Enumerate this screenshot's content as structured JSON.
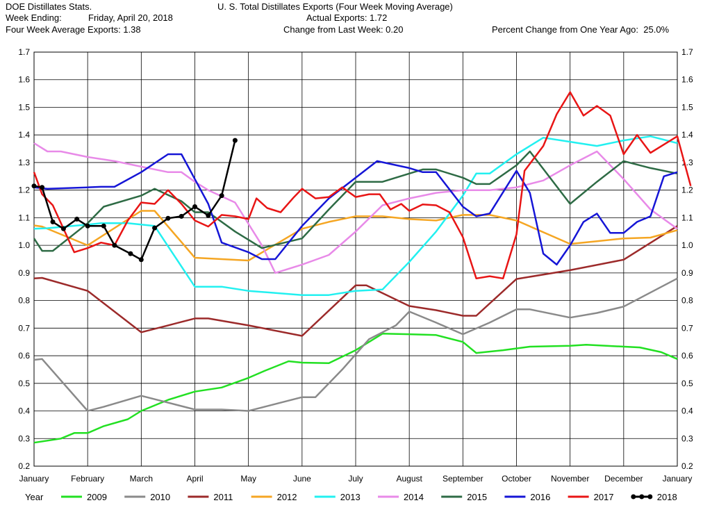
{
  "header": {
    "source": "DOE Distillates Stats.",
    "week_ending_label": "Week Ending:",
    "week_ending_value": "Friday, April 20, 2018",
    "four_week_avg": "Four Week Average Exports: 1.38",
    "title": "U. S. Total Distillates Exports (Four Week Moving Average)",
    "actual_exports": "Actual Exports: 1.72",
    "change_last_week": "Change from Last Week: 0.20",
    "pct_change": "Percent Change from One Year Ago:  25.0%"
  },
  "colors": {
    "2009": "#22e022",
    "2010": "#8a8a8a",
    "2011": "#9c2a2a",
    "2012": "#f5a623",
    "2013": "#22f0f0",
    "2014": "#e88ae8",
    "2015": "#2e6b45",
    "2016": "#1515d6",
    "2017": "#e81515",
    "2018": "#000000"
  },
  "chart_data": {
    "type": "line",
    "title": "U. S. Total Distillates Exports (Four Week Moving Average)",
    "x_unit": "month index (0 = January 1, 12 = following January 1)",
    "xlabels": [
      "January",
      "February",
      "March",
      "April",
      "May",
      "June",
      "July",
      "August",
      "September",
      "October",
      "November",
      "December",
      "January"
    ],
    "ylim": [
      0.2,
      1.7
    ],
    "yticks": [
      "0.2",
      "0.3",
      "0.4",
      "0.5",
      "0.6",
      "0.7",
      "0.8",
      "0.9",
      "1.0",
      "1.1",
      "1.2",
      "1.3",
      "1.4",
      "1.5",
      "1.6",
      "1.7"
    ],
    "grid": true,
    "legend_position": "bottom",
    "legend_title": "Year",
    "series": [
      {
        "name": "2009",
        "markers": false,
        "points": [
          [
            0,
            0.285
          ],
          [
            0.5,
            0.3
          ],
          [
            0.75,
            0.32
          ],
          [
            1.0,
            0.32
          ],
          [
            1.3,
            0.345
          ],
          [
            1.75,
            0.37
          ],
          [
            2.0,
            0.4
          ],
          [
            2.5,
            0.44
          ],
          [
            3.0,
            0.47
          ],
          [
            3.5,
            0.485
          ],
          [
            4.0,
            0.52
          ],
          [
            4.3,
            0.545
          ],
          [
            4.75,
            0.58
          ],
          [
            5.0,
            0.575
          ],
          [
            5.5,
            0.573
          ],
          [
            6.0,
            0.62
          ],
          [
            6.5,
            0.68
          ],
          [
            7.0,
            0.678
          ],
          [
            7.5,
            0.675
          ],
          [
            8.0,
            0.65
          ],
          [
            8.25,
            0.61
          ],
          [
            8.75,
            0.62
          ],
          [
            9.25,
            0.633
          ],
          [
            10.0,
            0.636
          ],
          [
            10.3,
            0.64
          ],
          [
            10.8,
            0.635
          ],
          [
            11.3,
            0.63
          ],
          [
            11.7,
            0.613
          ],
          [
            12.0,
            0.588
          ]
        ]
      },
      {
        "name": "2010",
        "markers": false,
        "points": [
          [
            0,
            0.585
          ],
          [
            0.15,
            0.588
          ],
          [
            1.0,
            0.4
          ],
          [
            1.3,
            0.415
          ],
          [
            2.0,
            0.455
          ],
          [
            2.5,
            0.43
          ],
          [
            3.0,
            0.405
          ],
          [
            3.5,
            0.405
          ],
          [
            4.0,
            0.4
          ],
          [
            5.0,
            0.45
          ],
          [
            5.25,
            0.45
          ],
          [
            5.75,
            0.55
          ],
          [
            6.25,
            0.66
          ],
          [
            6.75,
            0.71
          ],
          [
            7.0,
            0.76
          ],
          [
            7.5,
            0.72
          ],
          [
            8.0,
            0.678
          ],
          [
            8.5,
            0.72
          ],
          [
            9.0,
            0.768
          ],
          [
            9.25,
            0.768
          ],
          [
            10.0,
            0.738
          ],
          [
            10.5,
            0.755
          ],
          [
            11.0,
            0.778
          ],
          [
            12.0,
            0.88
          ]
        ]
      },
      {
        "name": "2011",
        "markers": false,
        "points": [
          [
            0,
            0.88
          ],
          [
            0.15,
            0.882
          ],
          [
            1.0,
            0.835
          ],
          [
            2.0,
            0.685
          ],
          [
            2.5,
            0.71
          ],
          [
            3.0,
            0.735
          ],
          [
            3.25,
            0.735
          ],
          [
            4.0,
            0.71
          ],
          [
            5.0,
            0.672
          ],
          [
            6.0,
            0.855
          ],
          [
            6.2,
            0.855
          ],
          [
            7.0,
            0.78
          ],
          [
            7.5,
            0.765
          ],
          [
            8.0,
            0.745
          ],
          [
            8.25,
            0.745
          ],
          [
            9.0,
            0.878
          ],
          [
            10.0,
            0.91
          ],
          [
            11.0,
            0.948
          ],
          [
            12.0,
            1.07
          ]
        ]
      },
      {
        "name": "2012",
        "markers": false,
        "points": [
          [
            0,
            1.072
          ],
          [
            0.15,
            1.068
          ],
          [
            1.0,
            1.0
          ],
          [
            2.0,
            1.125
          ],
          [
            2.25,
            1.125
          ],
          [
            3.0,
            0.955
          ],
          [
            4.0,
            0.945
          ],
          [
            5.0,
            1.06
          ],
          [
            5.5,
            1.085
          ],
          [
            6.0,
            1.105
          ],
          [
            6.5,
            1.105
          ],
          [
            7.0,
            1.095
          ],
          [
            7.5,
            1.09
          ],
          [
            8.0,
            1.11
          ],
          [
            8.5,
            1.11
          ],
          [
            9.0,
            1.09
          ],
          [
            10.0,
            1.005
          ],
          [
            10.5,
            1.015
          ],
          [
            11.0,
            1.025
          ],
          [
            11.5,
            1.028
          ],
          [
            12.0,
            1.055
          ]
        ]
      },
      {
        "name": "2013",
        "markers": false,
        "points": [
          [
            0,
            1.06
          ],
          [
            0.25,
            1.062
          ],
          [
            1.0,
            1.075
          ],
          [
            1.25,
            1.08
          ],
          [
            1.75,
            1.08
          ],
          [
            2.0,
            1.075
          ],
          [
            2.25,
            1.07
          ],
          [
            3.0,
            0.85
          ],
          [
            3.5,
            0.85
          ],
          [
            4.0,
            0.835
          ],
          [
            5.0,
            0.82
          ],
          [
            5.5,
            0.82
          ],
          [
            6.0,
            0.835
          ],
          [
            6.5,
            0.84
          ],
          [
            7.0,
            0.94
          ],
          [
            7.5,
            1.05
          ],
          [
            8.0,
            1.18
          ],
          [
            8.25,
            1.26
          ],
          [
            8.5,
            1.26
          ],
          [
            9.0,
            1.33
          ],
          [
            9.5,
            1.39
          ],
          [
            10.0,
            1.375
          ],
          [
            10.5,
            1.36
          ],
          [
            11.0,
            1.38
          ],
          [
            11.5,
            1.395
          ],
          [
            12.0,
            1.37
          ]
        ]
      },
      {
        "name": "2014",
        "markers": false,
        "points": [
          [
            0,
            1.37
          ],
          [
            0.25,
            1.34
          ],
          [
            0.5,
            1.34
          ],
          [
            1.0,
            1.32
          ],
          [
            1.5,
            1.305
          ],
          [
            2.0,
            1.285
          ],
          [
            2.5,
            1.265
          ],
          [
            2.75,
            1.265
          ],
          [
            3.0,
            1.23
          ],
          [
            3.25,
            1.2
          ],
          [
            3.75,
            1.155
          ],
          [
            4.25,
            1.0
          ],
          [
            4.5,
            0.9
          ],
          [
            5.0,
            0.93
          ],
          [
            5.5,
            0.965
          ],
          [
            6.0,
            1.05
          ],
          [
            6.5,
            1.145
          ],
          [
            7.0,
            1.17
          ],
          [
            7.5,
            1.19
          ],
          [
            8.0,
            1.2
          ],
          [
            8.5,
            1.2
          ],
          [
            9.0,
            1.21
          ],
          [
            9.5,
            1.235
          ],
          [
            10.0,
            1.29
          ],
          [
            10.5,
            1.34
          ],
          [
            11.0,
            1.24
          ],
          [
            11.5,
            1.13
          ],
          [
            12.0,
            1.06
          ]
        ]
      },
      {
        "name": "2015",
        "markers": false,
        "points": [
          [
            0,
            1.025
          ],
          [
            0.15,
            0.98
          ],
          [
            0.35,
            0.98
          ],
          [
            1.0,
            1.08
          ],
          [
            1.3,
            1.14
          ],
          [
            2.0,
            1.18
          ],
          [
            2.25,
            1.205
          ],
          [
            2.75,
            1.16
          ],
          [
            3.0,
            1.12
          ],
          [
            3.25,
            1.12
          ],
          [
            3.75,
            1.05
          ],
          [
            4.25,
            0.99
          ],
          [
            5.0,
            1.025
          ],
          [
            5.5,
            1.13
          ],
          [
            6.0,
            1.23
          ],
          [
            6.5,
            1.23
          ],
          [
            7.0,
            1.26
          ],
          [
            7.25,
            1.275
          ],
          [
            7.5,
            1.275
          ],
          [
            8.0,
            1.245
          ],
          [
            8.25,
            1.222
          ],
          [
            8.5,
            1.222
          ],
          [
            9.0,
            1.29
          ],
          [
            9.25,
            1.34
          ],
          [
            10.0,
            1.15
          ],
          [
            10.5,
            1.23
          ],
          [
            11.0,
            1.305
          ],
          [
            11.5,
            1.28
          ],
          [
            12.0,
            1.26
          ]
        ]
      },
      {
        "name": "2016",
        "markers": false,
        "points": [
          [
            0,
            1.21
          ],
          [
            0.25,
            1.205
          ],
          [
            1.0,
            1.21
          ],
          [
            1.25,
            1.212
          ],
          [
            1.5,
            1.212
          ],
          [
            2.0,
            1.265
          ],
          [
            2.5,
            1.33
          ],
          [
            2.75,
            1.33
          ],
          [
            3.0,
            1.24
          ],
          [
            3.25,
            1.15
          ],
          [
            3.5,
            1.01
          ],
          [
            4.0,
            0.975
          ],
          [
            4.25,
            0.95
          ],
          [
            4.5,
            0.95
          ],
          [
            5.0,
            1.07
          ],
          [
            5.5,
            1.17
          ],
          [
            6.0,
            1.245
          ],
          [
            6.4,
            1.305
          ],
          [
            7.0,
            1.28
          ],
          [
            7.25,
            1.265
          ],
          [
            7.5,
            1.265
          ],
          [
            8.0,
            1.14
          ],
          [
            8.25,
            1.105
          ],
          [
            8.5,
            1.115
          ],
          [
            9.0,
            1.27
          ],
          [
            9.25,
            1.19
          ],
          [
            9.5,
            0.97
          ],
          [
            9.75,
            0.93
          ],
          [
            10.0,
            1.0
          ],
          [
            10.25,
            1.085
          ],
          [
            10.5,
            1.115
          ],
          [
            10.75,
            1.045
          ],
          [
            11.0,
            1.045
          ],
          [
            11.25,
            1.085
          ],
          [
            11.5,
            1.105
          ],
          [
            11.75,
            1.25
          ],
          [
            12.0,
            1.265
          ]
        ]
      },
      {
        "name": "2017",
        "markers": false,
        "points": [
          [
            0,
            1.265
          ],
          [
            0.15,
            1.185
          ],
          [
            0.35,
            1.145
          ],
          [
            0.75,
            0.975
          ],
          [
            1.0,
            0.99
          ],
          [
            1.25,
            1.01
          ],
          [
            1.5,
            1.0
          ],
          [
            1.75,
            1.09
          ],
          [
            2.0,
            1.155
          ],
          [
            2.25,
            1.15
          ],
          [
            2.5,
            1.2
          ],
          [
            2.75,
            1.15
          ],
          [
            3.0,
            1.09
          ],
          [
            3.25,
            1.068
          ],
          [
            3.5,
            1.11
          ],
          [
            3.75,
            1.105
          ],
          [
            4.0,
            1.095
          ],
          [
            4.15,
            1.17
          ],
          [
            4.35,
            1.135
          ],
          [
            4.6,
            1.12
          ],
          [
            4.85,
            1.175
          ],
          [
            5.0,
            1.205
          ],
          [
            5.25,
            1.17
          ],
          [
            5.5,
            1.175
          ],
          [
            5.75,
            1.21
          ],
          [
            6.0,
            1.175
          ],
          [
            6.25,
            1.185
          ],
          [
            6.45,
            1.185
          ],
          [
            6.65,
            1.13
          ],
          [
            6.85,
            1.15
          ],
          [
            7.0,
            1.125
          ],
          [
            7.25,
            1.148
          ],
          [
            7.5,
            1.145
          ],
          [
            7.75,
            1.12
          ],
          [
            8.0,
            1.03
          ],
          [
            8.25,
            0.88
          ],
          [
            8.5,
            0.888
          ],
          [
            8.75,
            0.88
          ],
          [
            9.0,
            1.04
          ],
          [
            9.15,
            1.27
          ],
          [
            9.5,
            1.36
          ],
          [
            9.75,
            1.475
          ],
          [
            10.0,
            1.555
          ],
          [
            10.25,
            1.47
          ],
          [
            10.5,
            1.505
          ],
          [
            10.75,
            1.47
          ],
          [
            11.0,
            1.33
          ],
          [
            11.25,
            1.4
          ],
          [
            11.5,
            1.335
          ],
          [
            11.75,
            1.365
          ],
          [
            12.0,
            1.395
          ],
          [
            12.25,
            1.215
          ]
        ]
      },
      {
        "name": "2018",
        "markers": true,
        "points": [
          [
            0,
            1.215
          ],
          [
            0.15,
            1.21
          ],
          [
            0.35,
            1.085
          ],
          [
            0.55,
            1.06
          ],
          [
            0.8,
            1.095
          ],
          [
            1.0,
            1.07
          ],
          [
            1.3,
            1.07
          ],
          [
            1.5,
            1.0
          ],
          [
            1.8,
            0.97
          ],
          [
            2.0,
            0.948
          ],
          [
            2.25,
            1.063
          ],
          [
            2.5,
            1.098
          ],
          [
            2.75,
            1.105
          ],
          [
            3.0,
            1.14
          ],
          [
            3.25,
            1.108
          ],
          [
            3.5,
            1.18
          ],
          [
            3.75,
            1.38
          ]
        ]
      }
    ]
  }
}
